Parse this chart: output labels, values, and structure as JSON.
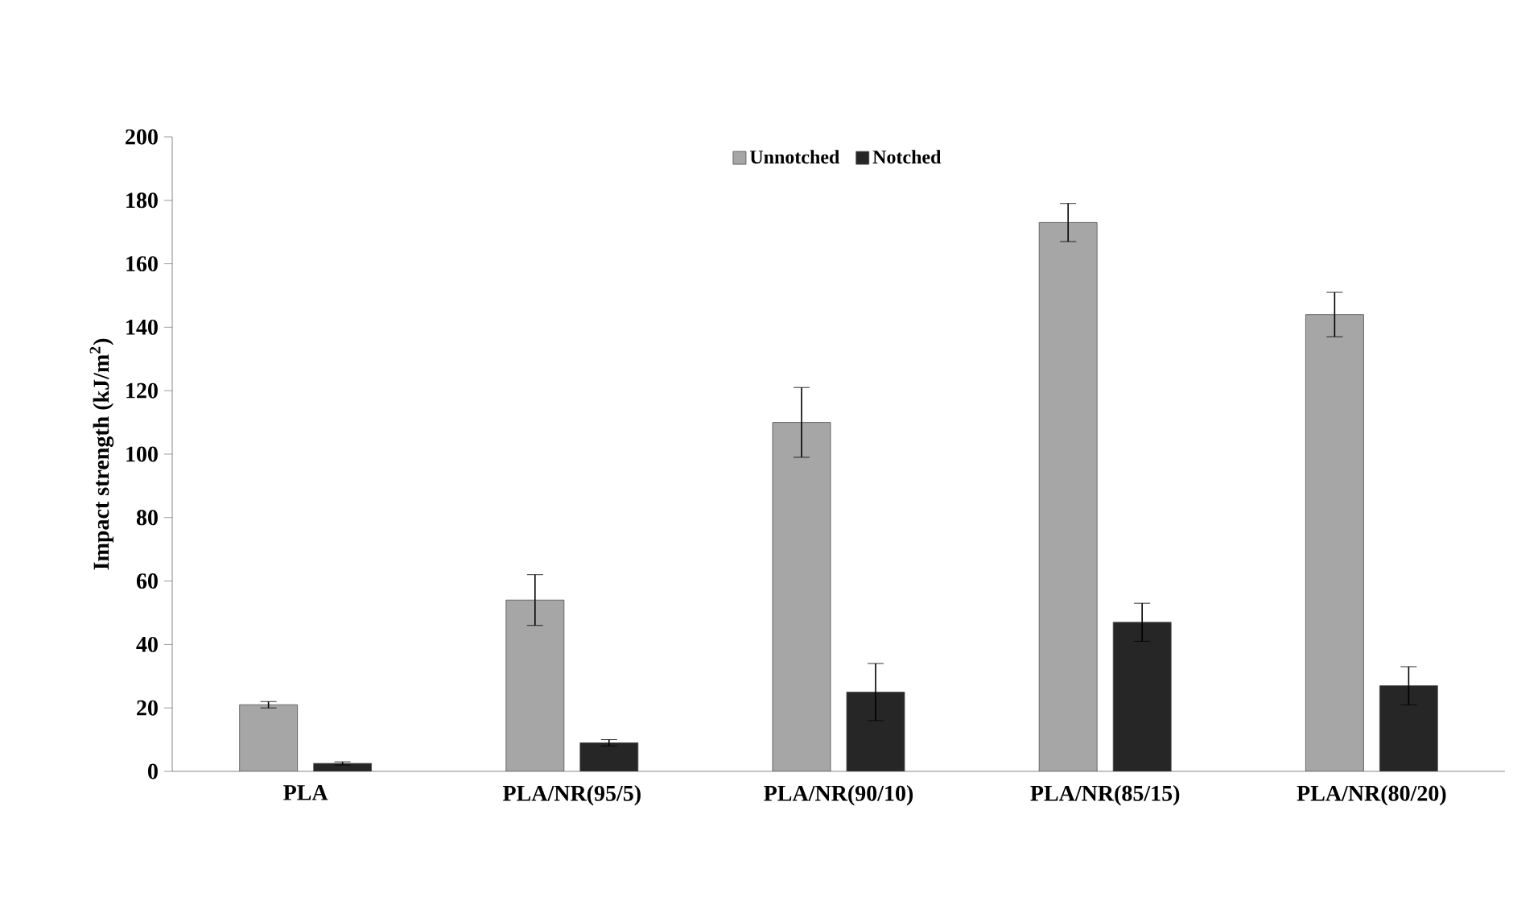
{
  "chart_data": {
    "type": "bar",
    "ylabel": "Impact strength (kJ/m$^{2}$)",
    "categories": [
      "PLA",
      "PLA/NR(95/5)",
      "PLA/NR(90/10)",
      "PLA/NR(85/15)",
      "PLA/NR(80/20)"
    ],
    "series": [
      {
        "name": "Unnotched",
        "color": "#a6a6a6",
        "values": [
          21,
          54,
          110,
          173,
          144
        ],
        "errors": [
          1,
          8,
          11,
          6,
          7
        ]
      },
      {
        "name": "Notched",
        "color": "#262626",
        "values": [
          2.5,
          9,
          25,
          47,
          27
        ],
        "errors": [
          0.5,
          1,
          9,
          6,
          6
        ]
      }
    ],
    "ylim": [
      0,
      200
    ],
    "yticks": [
      0,
      20,
      40,
      60,
      80,
      100,
      120,
      140,
      160,
      180,
      200
    ],
    "legend": "top",
    "grid": false
  }
}
